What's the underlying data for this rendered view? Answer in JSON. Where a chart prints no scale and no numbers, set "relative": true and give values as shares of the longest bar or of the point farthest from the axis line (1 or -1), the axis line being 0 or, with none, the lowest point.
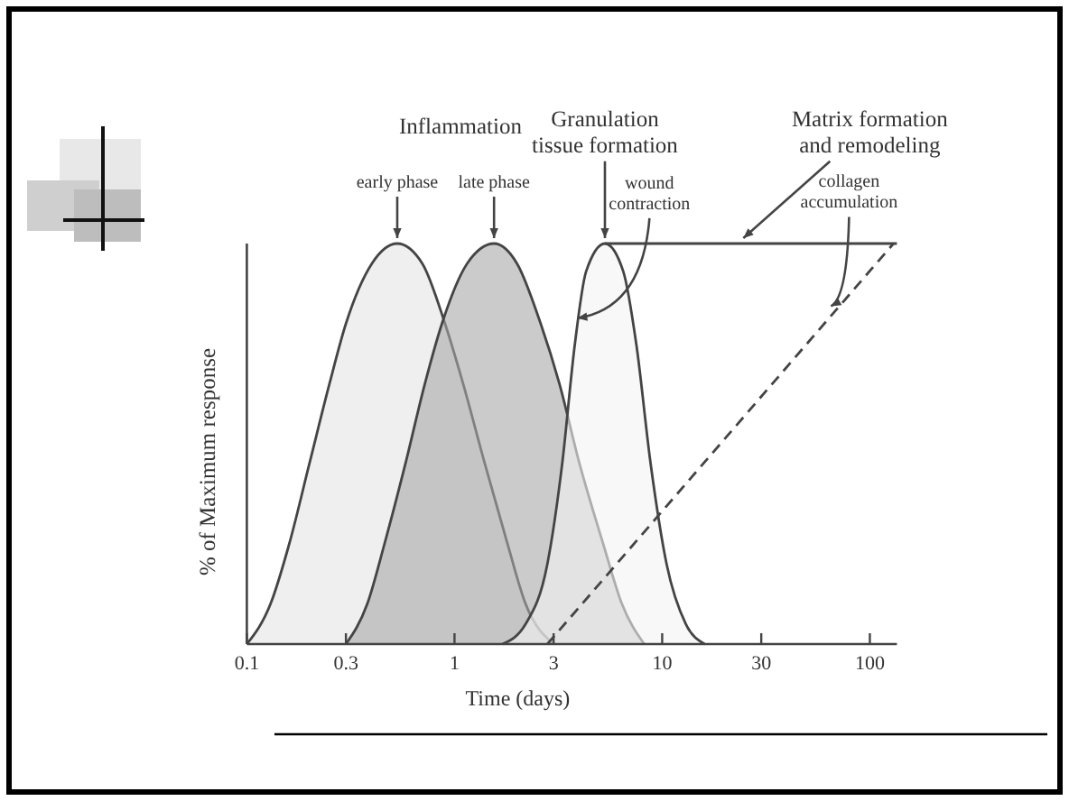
{
  "chart_data": {
    "type": "area",
    "relative": true,
    "log": "x",
    "xlabel": "Time (days)",
    "ylabel": "% of Maximum response",
    "xlim": [
      0.1,
      135
    ],
    "xticks": [
      0.1,
      0.3,
      1,
      3,
      10,
      30,
      100
    ],
    "grid": false,
    "series": [
      {
        "color": "#e4e4e4",
        "x": [
          0.1,
          0.13,
          0.16,
          0.2,
          0.25,
          0.3,
          0.4,
          0.53,
          0.7,
          0.9,
          1.1,
          1.4,
          1.8,
          2.2,
          3
        ],
        "values": [
          0,
          0.1,
          0.25,
          0.45,
          0.65,
          0.8,
          0.95,
          1,
          0.95,
          0.8,
          0.65,
          0.45,
          0.25,
          0.1,
          0
        ]
      },
      {
        "color": "#a8a8a8",
        "x": [
          0.3,
          0.38,
          0.46,
          0.58,
          0.72,
          0.87,
          1.15,
          1.55,
          2,
          2.6,
          3.2,
          4,
          5.2,
          6.4,
          8.2
        ],
        "values": [
          0,
          0.1,
          0.25,
          0.45,
          0.65,
          0.8,
          0.95,
          1,
          0.95,
          0.8,
          0.65,
          0.45,
          0.25,
          0.1,
          0
        ]
      },
      {
        "color": "#f4f4f4",
        "x": [
          1.7,
          2.2,
          2.8,
          3.3,
          3.8,
          4.3,
          5.3,
          6.5,
          7.5,
          8.8,
          10.5,
          13,
          16
        ],
        "values": [
          0,
          0.05,
          0.2,
          0.45,
          0.75,
          0.93,
          1,
          0.93,
          0.75,
          0.45,
          0.2,
          0.05,
          0
        ]
      },
      {
        "type": "line",
        "color": "#444444",
        "x": [
          5.3,
          135
        ],
        "values": [
          1,
          1
        ]
      },
      {
        "type": "line",
        "color": "#444444",
        "line_style": "dashed",
        "x": [
          2.8,
          130
        ],
        "values": [
          0,
          1
        ]
      }
    ],
    "annotations": [
      "Inflammation",
      {
        "text": "early phase",
        "x": 0.53,
        "y": 1
      },
      {
        "text": "late phase",
        "x": 1.55,
        "y": 1
      },
      {
        "text": "Granulation\ntissue formation",
        "x": 5.3,
        "y": 1
      },
      {
        "text": "wound\ncontraction",
        "x": 3.9,
        "y": 0.8
      },
      {
        "text": "Matrix formation\nand remodeling",
        "x": 24.6,
        "y": 1
      },
      {
        "text": "collagen\naccumulation",
        "x": 65,
        "y": 0.83
      }
    ]
  }
}
